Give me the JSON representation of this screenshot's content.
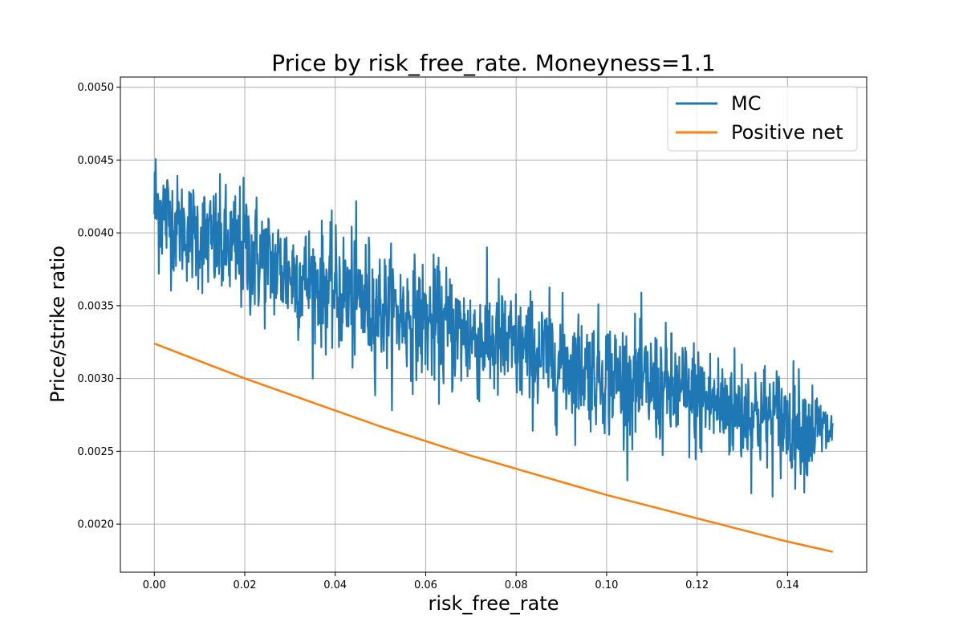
{
  "chart_data": {
    "type": "line",
    "title": "Price by risk_free_rate. Moneyness=1.1",
    "xlabel": "risk_free_rate",
    "ylabel": "Price/strike ratio",
    "xlim": [
      -0.0075,
      0.1575
    ],
    "ylim": [
      0.00167,
      0.00507
    ],
    "xticks": [
      0.0,
      0.02,
      0.04,
      0.06,
      0.08,
      0.1,
      0.12,
      0.14
    ],
    "xtick_labels": [
      "0.00",
      "0.02",
      "0.04",
      "0.06",
      "0.08",
      "0.10",
      "0.12",
      "0.14"
    ],
    "yticks": [
      0.002,
      0.0025,
      0.003,
      0.0035,
      0.004,
      0.0045,
      0.005
    ],
    "ytick_labels": [
      "0.0020",
      "0.0025",
      "0.0030",
      "0.0035",
      "0.0040",
      "0.0045",
      "0.0050"
    ],
    "grid": true,
    "legend_position": "top-right",
    "series": [
      {
        "name": "MC",
        "color": "#1f77b4",
        "noisy": true,
        "x": [
          0.0,
          0.005,
          0.01,
          0.015,
          0.02,
          0.025,
          0.03,
          0.035,
          0.04,
          0.045,
          0.05,
          0.055,
          0.06,
          0.065,
          0.07,
          0.075,
          0.08,
          0.085,
          0.09,
          0.095,
          0.1,
          0.105,
          0.11,
          0.115,
          0.12,
          0.125,
          0.13,
          0.135,
          0.14,
          0.145,
          0.15
        ],
        "y": [
          0.0042,
          0.00405,
          0.00398,
          0.0039,
          0.00388,
          0.0038,
          0.00372,
          0.00366,
          0.0036,
          0.00354,
          0.00348,
          0.00344,
          0.00339,
          0.00334,
          0.00329,
          0.00325,
          0.0032,
          0.00316,
          0.00311,
          0.00307,
          0.00303,
          0.00298,
          0.00294,
          0.0029,
          0.00286,
          0.00282,
          0.00278,
          0.00274,
          0.0027,
          0.00266,
          0.00263
        ],
        "y_min": [
          0.0034,
          0.0035,
          0.0035,
          0.0033,
          0.0032,
          0.0031,
          0.003,
          0.003,
          0.0029,
          0.0028,
          0.0028,
          0.0027,
          0.0027,
          0.0026,
          0.0026,
          0.0025,
          0.0025,
          0.0025,
          0.0024,
          0.0024,
          0.0023,
          0.0023,
          0.0023,
          0.0022,
          0.0022,
          0.0022,
          0.0021,
          0.0021,
          0.0021,
          0.0021,
          0.0024
        ],
        "y_max": [
          0.0049,
          0.0046,
          0.0047,
          0.0046,
          0.0047,
          0.0044,
          0.0043,
          0.0043,
          0.0042,
          0.0044,
          0.0041,
          0.004,
          0.004,
          0.004,
          0.0039,
          0.0039,
          0.0038,
          0.0038,
          0.0037,
          0.0036,
          0.0036,
          0.0036,
          0.0036,
          0.0035,
          0.0035,
          0.0034,
          0.0034,
          0.0033,
          0.0033,
          0.0032,
          0.003
        ]
      },
      {
        "name": "Positive net",
        "color": "#ff7f0e",
        "noisy": false,
        "x": [
          0.0,
          0.01,
          0.02,
          0.03,
          0.04,
          0.05,
          0.06,
          0.07,
          0.08,
          0.09,
          0.1,
          0.11,
          0.12,
          0.13,
          0.14,
          0.15
        ],
        "y": [
          0.00324,
          0.00312,
          0.003,
          0.00289,
          0.00278,
          0.00267,
          0.00257,
          0.00247,
          0.00238,
          0.00229,
          0.0022,
          0.00212,
          0.00204,
          0.00196,
          0.00188,
          0.00181
        ]
      }
    ]
  }
}
